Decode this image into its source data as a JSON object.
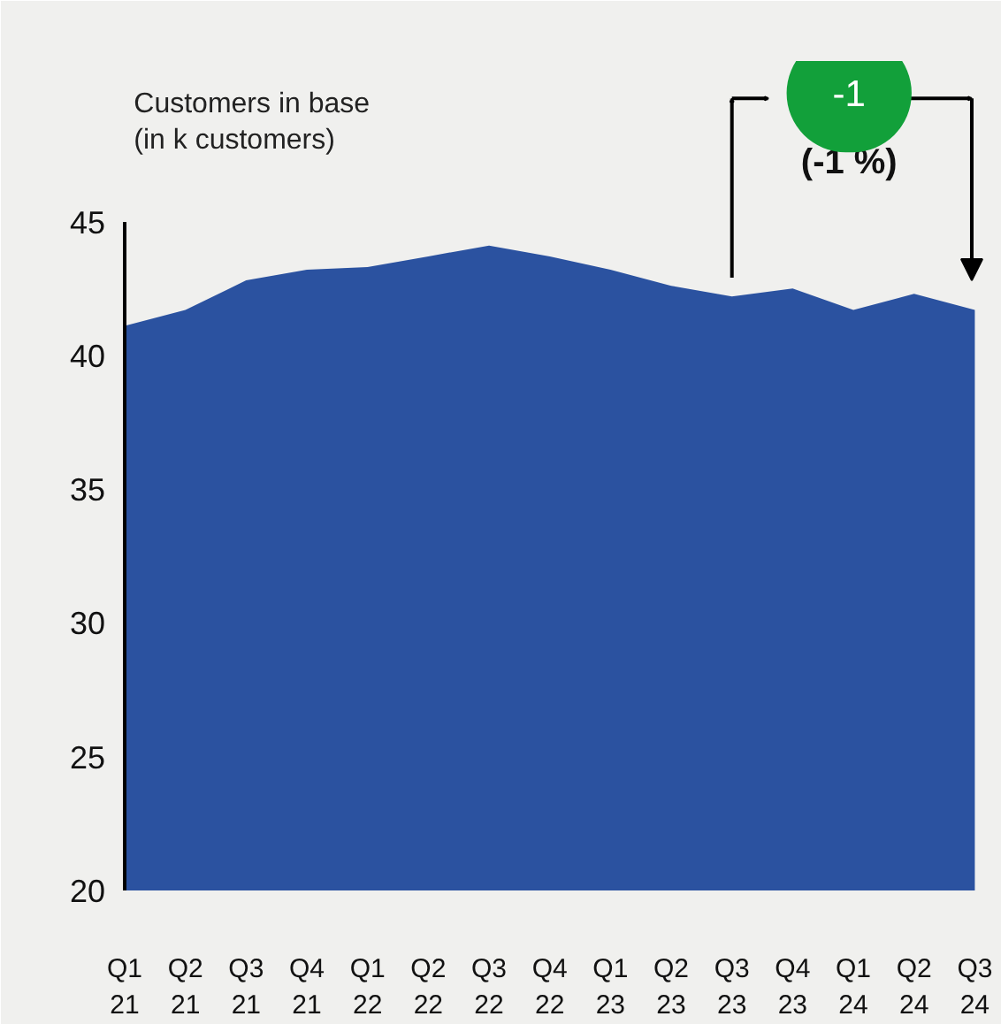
{
  "chart_data": {
    "type": "area",
    "ylabel": "Customers in base\n(in k customers)",
    "categories": [
      "Q1\n21",
      "Q2\n21",
      "Q3\n21",
      "Q4\n21",
      "Q1\n22",
      "Q2\n22",
      "Q3\n22",
      "Q4\n22",
      "Q1\n23",
      "Q2\n23",
      "Q3\n23",
      "Q4\n23",
      "Q1\n24",
      "Q2\n24",
      "Q3\n24"
    ],
    "series": [
      {
        "color": "#2b52a0",
        "values": [
          41.1,
          41.7,
          42.8,
          43.2,
          43.3,
          43.7,
          44.1,
          43.7,
          43.2,
          42.6,
          42.2,
          42.5,
          41.7,
          42.3,
          41.7
        ]
      }
    ],
    "ylim": [
      20,
      51
    ],
    "yticks": [
      20,
      25,
      30,
      35,
      40,
      45
    ],
    "grid": false,
    "annotations": [
      "-1",
      "(-1 %)"
    ]
  }
}
